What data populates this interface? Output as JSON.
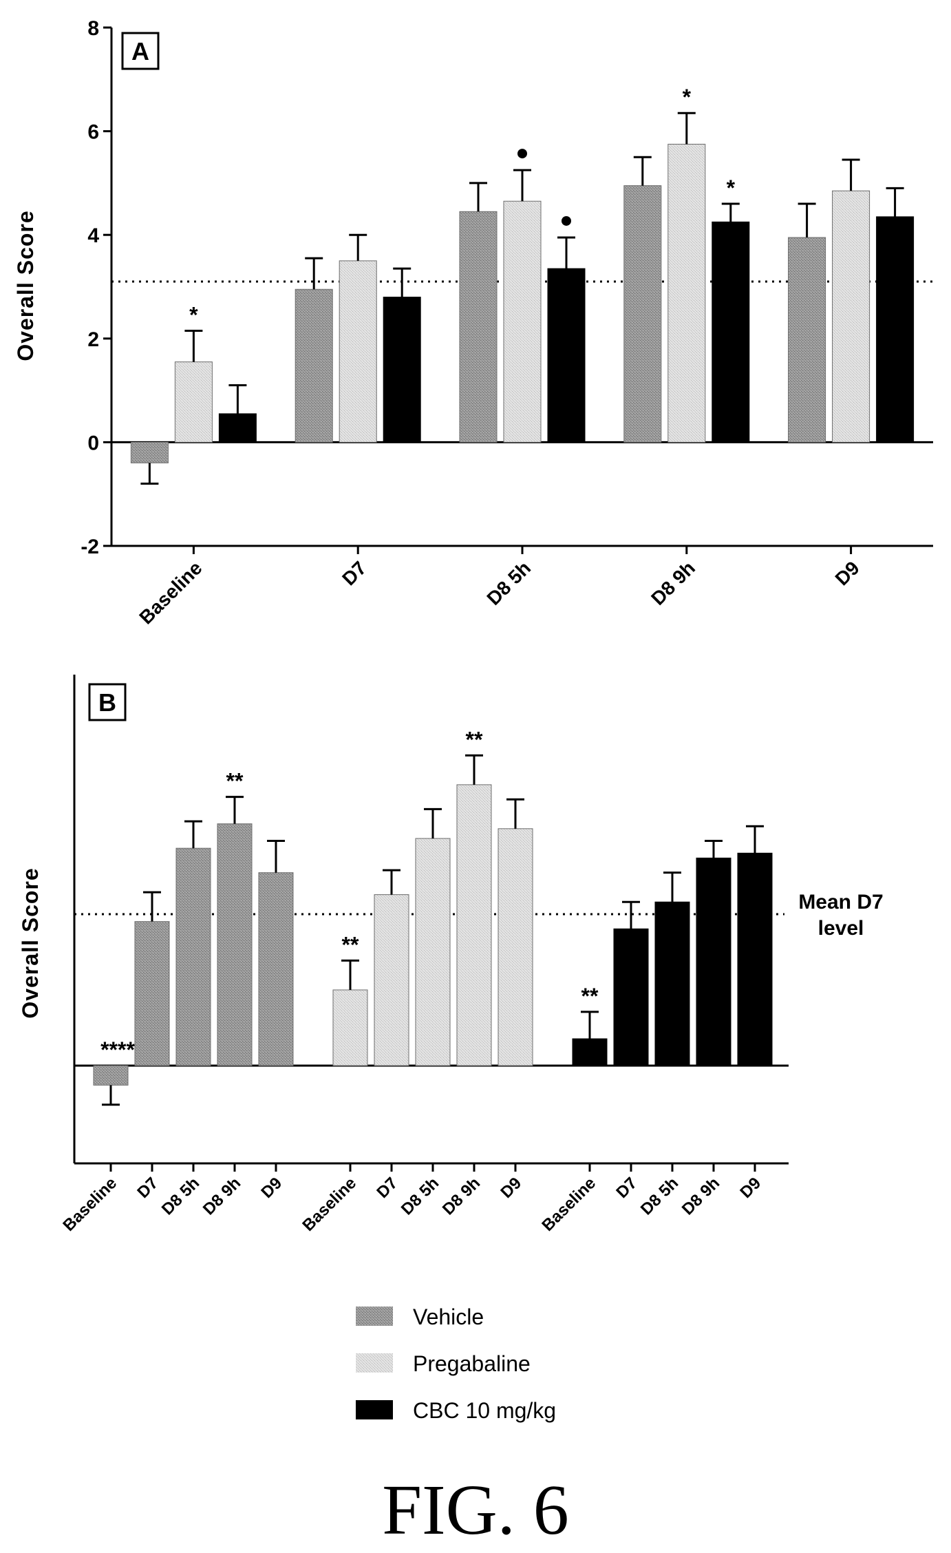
{
  "figure_label": "FIG. 6",
  "legend": {
    "items": [
      {
        "label": "Vehicle",
        "color": "#8e8e8e"
      },
      {
        "label": "Pregabaline",
        "color": "#d8d8d8"
      },
      {
        "label": "CBC 10 mg/kg",
        "color": "#000000"
      }
    ]
  },
  "chart_data": [
    {
      "panel": "A",
      "type": "bar",
      "ylabel": "Overall Score",
      "ylim": [
        -2,
        8
      ],
      "yticks": [
        "-2",
        "0",
        "2",
        "4",
        "6",
        "8"
      ],
      "reference_line": 3.1,
      "categories": [
        "Baseline",
        "D7",
        "D8 5h",
        "D8 9h",
        "D9"
      ],
      "series": [
        {
          "name": "Vehicle",
          "color": "#8e8e8e",
          "values": [
            -0.4,
            2.95,
            4.45,
            4.95,
            3.95
          ],
          "errors": [
            0.4,
            0.6,
            0.55,
            0.55,
            0.65
          ],
          "marks": [
            "",
            "",
            "",
            "",
            ""
          ]
        },
        {
          "name": "Pregabaline",
          "color": "#d8d8d8",
          "values": [
            1.55,
            3.5,
            4.65,
            5.75,
            4.85
          ],
          "errors": [
            0.6,
            0.5,
            0.6,
            0.6,
            0.6
          ],
          "marks": [
            "*",
            "",
            "•",
            "*",
            ""
          ]
        },
        {
          "name": "CBC 10 mg/kg",
          "color": "#000000",
          "values": [
            0.55,
            2.8,
            3.35,
            4.25,
            4.35
          ],
          "errors": [
            0.55,
            0.55,
            0.6,
            0.35,
            0.55
          ],
          "marks": [
            "",
            "",
            "•",
            "*",
            ""
          ]
        }
      ]
    },
    {
      "panel": "B",
      "type": "bar",
      "ylabel": "Overall Score",
      "ylim": [
        -2,
        8
      ],
      "reference_line": 3.1,
      "reference_label": [
        "Mean D7",
        "level"
      ],
      "groups": [
        {
          "series": "Vehicle",
          "color": "#8e8e8e",
          "categories": [
            "Baseline",
            "D7",
            "D8 5h",
            "D8 9h",
            "D9"
          ],
          "values": [
            -0.4,
            2.95,
            4.45,
            4.95,
            3.95
          ],
          "errors": [
            0.4,
            0.6,
            0.55,
            0.55,
            0.65
          ],
          "marks": [
            "****",
            "",
            "",
            "**",
            ""
          ]
        },
        {
          "series": "Pregabaline",
          "color": "#d8d8d8",
          "categories": [
            "Baseline",
            "D7",
            "D8 5h",
            "D8 9h",
            "D9"
          ],
          "values": [
            1.55,
            3.5,
            4.65,
            5.75,
            4.85
          ],
          "errors": [
            0.6,
            0.5,
            0.6,
            0.6,
            0.6
          ],
          "marks": [
            "**",
            "",
            "",
            "**",
            ""
          ]
        },
        {
          "series": "CBC 10 mg/kg",
          "color": "#000000",
          "categories": [
            "Baseline",
            "D7",
            "D8 5h",
            "D8 9h",
            "D9"
          ],
          "values": [
            0.55,
            2.8,
            3.35,
            4.25,
            4.35
          ],
          "errors": [
            0.55,
            0.55,
            0.6,
            0.35,
            0.55
          ],
          "marks": [
            "**",
            "",
            "",
            "",
            ""
          ]
        }
      ]
    }
  ]
}
